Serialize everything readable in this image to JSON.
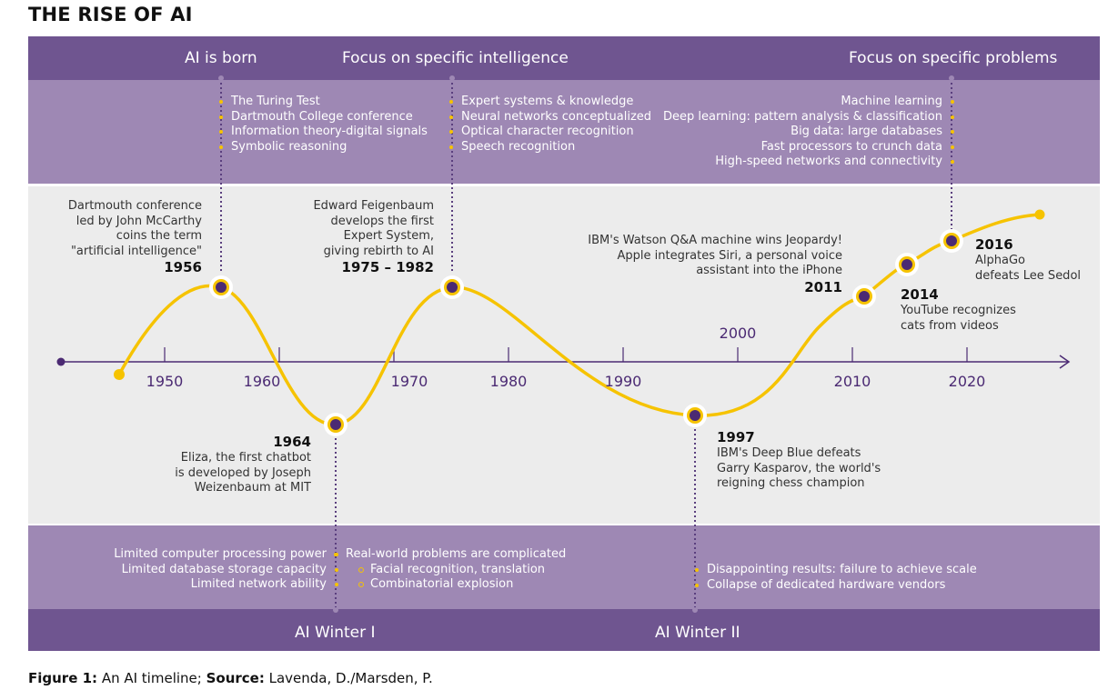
{
  "title": "THE RISE OF AI",
  "headers": {
    "ai_born": "AI is born",
    "specific_intelligence": "Focus on specific intelligence",
    "specific_problems": "Focus on specific problems",
    "winter1": "AI Winter I",
    "winter2": "AI Winter II"
  },
  "top_lists": {
    "born": [
      "The Turing Test",
      "Dartmouth College conference",
      "Information theory-digital signals",
      "Symbolic reasoning"
    ],
    "intelligence": [
      "Expert systems & knowledge",
      "Neural networks conceptualized",
      "Optical character recognition",
      "Speech recognition"
    ],
    "problems": [
      "Machine learning",
      "Deep learning: pattern analysis & classification",
      "Big data: large databases",
      "Fast processors to crunch data",
      "High-speed networks and connectivity"
    ]
  },
  "bottom_lists": {
    "winter1_left": [
      "Limited computer processing power",
      "Limited database storage capacity",
      "Limited network ability"
    ],
    "winter1_right": [
      "Real-world problems are complicated"
    ],
    "winter1_right_sub": [
      "Facial recognition, translation",
      "Combinatorial explosion"
    ],
    "winter2": [
      "Disappointing results: failure to achieve scale",
      "Collapse of dedicated hardware vendors"
    ]
  },
  "events": {
    "e1956": {
      "year": "1956",
      "lines": [
        "Dartmouth conference",
        "led by John McCarthy",
        "coins the term",
        "\"artificial intelligence\""
      ]
    },
    "e1975": {
      "year": "1975 – 1982",
      "lines": [
        "Edward Feigenbaum",
        "develops the first",
        "Expert System,",
        "giving rebirth to AI"
      ]
    },
    "e1964": {
      "year": "1964",
      "lines": [
        "Eliza, the first chatbot",
        "is developed by Joseph",
        "Weizenbaum at MIT"
      ]
    },
    "e1997": {
      "year": "1997",
      "lines": [
        "IBM's Deep Blue defeats",
        "Garry Kasparov, the world's",
        "reigning chess champion"
      ]
    },
    "e2011": {
      "year": "2011",
      "lines": [
        "IBM's Watson Q&A machine wins Jeopardy!",
        "Apple integrates Siri, a personal voice",
        "assistant into the iPhone"
      ]
    },
    "e2014": {
      "year": "2014",
      "lines": [
        "YouTube recognizes",
        "cats from videos"
      ]
    },
    "e2016": {
      "year": "2016",
      "lines": [
        "AlphaGo",
        "defeats Lee Sedol"
      ]
    }
  },
  "axis": {
    "ticks_below": [
      "1950",
      "1960",
      "1970",
      "1980",
      "1990",
      "2010",
      "2020"
    ],
    "tick_above": "2000"
  },
  "caption": {
    "figure": "Figure 1:",
    "text1": " An AI timeline; ",
    "source": "Source:",
    "text2": " Lavenda, D./Marsden, P."
  },
  "colors": {
    "purple_dark": "#6f5590",
    "purple_light": "#9e88b4",
    "curve": "#f6c300",
    "marker": "#4b2a73"
  }
}
